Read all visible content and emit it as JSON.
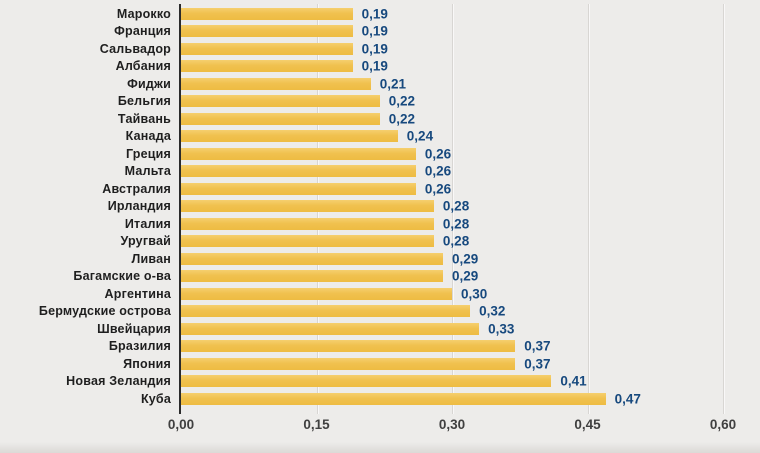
{
  "chart_data": {
    "type": "bar",
    "orientation": "horizontal",
    "title": "",
    "xlabel": "",
    "ylabel": "",
    "grid": true,
    "legend": false,
    "categories": [
      "Марокко",
      "Франция",
      "Сальвадор",
      "Албания",
      "Фиджи",
      "Бельгия",
      "Тайвань",
      "Канада",
      "Греция",
      "Мальта",
      "Австралия",
      "Ирландия",
      "Италия",
      "Уругвай",
      "Ливан",
      "Багамские о-ва",
      "Аргентина",
      "Бермудские острова",
      "Швейцария",
      "Бразилия",
      "Япония",
      "Новая Зеландия",
      "Куба"
    ],
    "values": [
      0.19,
      0.19,
      0.19,
      0.19,
      0.21,
      0.22,
      0.22,
      0.24,
      0.26,
      0.26,
      0.26,
      0.28,
      0.28,
      0.28,
      0.29,
      0.29,
      0.3,
      0.32,
      0.33,
      0.37,
      0.37,
      0.41,
      0.47
    ],
    "value_labels": [
      "0,19",
      "0,19",
      "0,19",
      "0,19",
      "0,21",
      "0,22",
      "0,22",
      "0,24",
      "0,26",
      "0,26",
      "0,26",
      "0,28",
      "0,28",
      "0,28",
      "0,29",
      "0,29",
      "0,30",
      "0,32",
      "0,33",
      "0,37",
      "0,37",
      "0,41",
      "0,47"
    ],
    "xlim": [
      0,
      0.6
    ],
    "x_tick_values": [
      0,
      0.15,
      0.3,
      0.45,
      0.6
    ],
    "x_tick_labels": [
      "0,00",
      "0,15",
      "0,30",
      "0,45",
      "0,60"
    ]
  },
  "colors": {
    "background": "#edecea",
    "bar": "#f0c14f",
    "bar_top": "#f6cf6e",
    "bar_bottom": "#eebc42",
    "value_label": "#17497e",
    "category_label": "#1f1f1f",
    "tick_label": "#404040",
    "gridline": "#d8d6d3",
    "axis_line": "#2b2b2b"
  }
}
